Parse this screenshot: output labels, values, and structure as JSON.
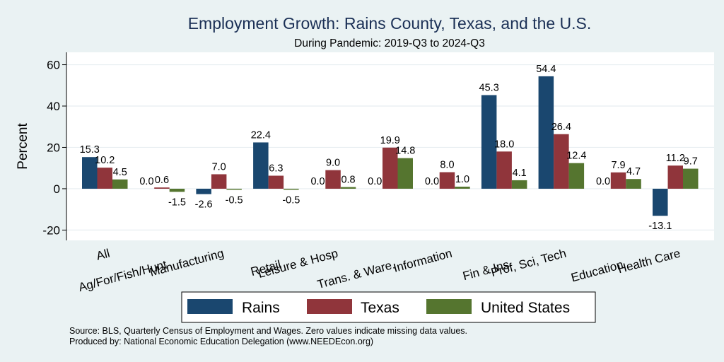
{
  "chart_data": {
    "type": "bar",
    "title": "Employment Growth: Rains County, Texas, and the U.S.",
    "subtitle": "During Pandemic: 2019-Q3 to 2024-Q3",
    "ylabel": "Percent",
    "xlabel": "",
    "ylim": [
      -25,
      66
    ],
    "yticks": [
      -20,
      0,
      20,
      40,
      60
    ],
    "grid": true,
    "legend_position": "bottom",
    "categories": [
      "All",
      "Ag/For/Fish/Hunt",
      "Manufacturing",
      "Retail",
      "Leisure & Hosp",
      "Trans. & Ware.",
      "Information",
      "Fin & Ins",
      "Prof, Sci, Tech",
      "Education",
      "Health Care"
    ],
    "series": [
      {
        "name": "Rains",
        "color": "#1a476f",
        "values": [
          15.3,
          0.0,
          -2.6,
          22.4,
          0.0,
          0.0,
          0.0,
          45.3,
          54.4,
          0.0,
          -13.1
        ],
        "labels": [
          "15.3",
          "0.0",
          "-2.6",
          "22.4",
          "0.0",
          "0.0",
          "0.0",
          "45.3",
          "54.4",
          "0.0",
          "-13.1"
        ]
      },
      {
        "name": "Texas",
        "color": "#90353b",
        "values": [
          10.2,
          0.6,
          7.0,
          6.3,
          9.0,
          19.9,
          8.0,
          18.0,
          26.4,
          7.9,
          11.2
        ],
        "labels": [
          "10.2",
          "0.6",
          "7.0",
          "6.3",
          "9.0",
          "19.9",
          "8.0",
          "18.0",
          "26.4",
          "7.9",
          "11.2"
        ]
      },
      {
        "name": "United States",
        "color": "#55752f",
        "values": [
          4.5,
          -1.5,
          -0.5,
          -0.5,
          0.8,
          14.8,
          1.0,
          4.1,
          12.4,
          4.7,
          9.7
        ],
        "labels": [
          "4.5",
          "-1.5",
          "-0.5",
          "-0.5",
          "0.8",
          "14.8",
          "1.0",
          "4.1",
          "12.4",
          "4.7",
          "9.7"
        ]
      }
    ],
    "notes": [
      "Source: BLS, Quarterly Census of Employment and Wages. Zero values indicate missing data values.",
      "Produced by: National Economic Education Delegation (www.NEEDEcon.org)"
    ]
  }
}
